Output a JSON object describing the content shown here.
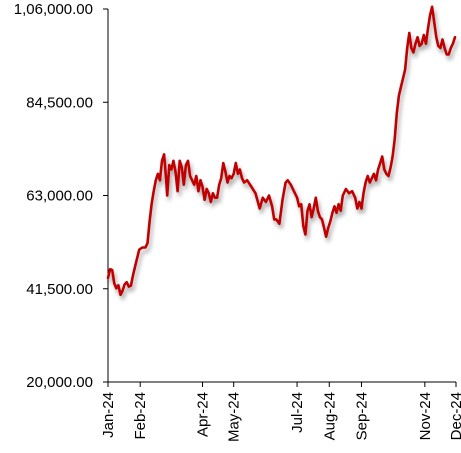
{
  "chart_data": {
    "type": "line",
    "title": "",
    "xlabel": "",
    "ylabel": "",
    "ylim": [
      20000,
      106000
    ],
    "y_ticks": [
      "20,000.00",
      "41,500.00",
      "63,000.00",
      "84,500.00",
      "1,06,000.00"
    ],
    "y_tick_values": [
      20000,
      41500,
      63000,
      84500,
      106000
    ],
    "x_ticks": [
      "Jan-24",
      "Feb-24",
      "Apr-24",
      "May-24",
      "Jul-24",
      "Aug-24",
      "Sep-24",
      "Nov-24",
      "Dec-24"
    ],
    "x_tick_dates": [
      "2024-01-01",
      "2024-02-01",
      "2024-04-01",
      "2024-05-01",
      "2024-07-01",
      "2024-08-01",
      "2024-09-01",
      "2024-11-01",
      "2024-12-01"
    ],
    "grid": false,
    "legend": "none",
    "series": [
      {
        "color": "#c00000",
        "points": [
          [
            "2024-01-01",
            44000
          ],
          [
            "2024-01-03",
            46000
          ],
          [
            "2024-01-05",
            45800
          ],
          [
            "2024-01-07",
            42800
          ],
          [
            "2024-01-09",
            41600
          ],
          [
            "2024-01-11",
            42300
          ],
          [
            "2024-01-13",
            40100
          ],
          [
            "2024-01-15",
            41000
          ],
          [
            "2024-01-17",
            42500
          ],
          [
            "2024-01-19",
            43000
          ],
          [
            "2024-01-21",
            42000
          ],
          [
            "2024-01-23",
            42200
          ],
          [
            "2024-01-25",
            44500
          ],
          [
            "2024-01-28",
            47500
          ],
          [
            "2024-01-31",
            50500
          ],
          [
            "2024-02-03",
            51000
          ],
          [
            "2024-02-06",
            51000
          ],
          [
            "2024-02-08",
            52000
          ],
          [
            "2024-02-10",
            57000
          ],
          [
            "2024-02-12",
            61000
          ],
          [
            "2024-02-14",
            64000
          ],
          [
            "2024-02-16",
            66500
          ],
          [
            "2024-02-18",
            68000
          ],
          [
            "2024-02-20",
            66500
          ],
          [
            "2024-02-22",
            71000
          ],
          [
            "2024-02-24",
            72500
          ],
          [
            "2024-02-26",
            66500
          ],
          [
            "2024-02-27",
            63000
          ],
          [
            "2024-02-29",
            70000
          ],
          [
            "2024-03-02",
            69000
          ],
          [
            "2024-03-04",
            71000
          ],
          [
            "2024-03-06",
            68500
          ],
          [
            "2024-03-08",
            64000
          ],
          [
            "2024-03-10",
            71000
          ],
          [
            "2024-03-12",
            69500
          ],
          [
            "2024-03-14",
            65500
          ],
          [
            "2024-03-16",
            70000
          ],
          [
            "2024-03-18",
            71000
          ],
          [
            "2024-03-20",
            67500
          ],
          [
            "2024-03-22",
            66500
          ],
          [
            "2024-03-24",
            65500
          ],
          [
            "2024-03-26",
            67500
          ],
          [
            "2024-03-28",
            64000
          ],
          [
            "2024-03-30",
            66500
          ],
          [
            "2024-04-01",
            65000
          ],
          [
            "2024-04-03",
            62000
          ],
          [
            "2024-04-05",
            64500
          ],
          [
            "2024-04-07",
            63500
          ],
          [
            "2024-04-09",
            61500
          ],
          [
            "2024-04-11",
            63500
          ],
          [
            "2024-04-13",
            62500
          ],
          [
            "2024-04-15",
            62500
          ],
          [
            "2024-04-17",
            65500
          ],
          [
            "2024-04-19",
            67000
          ],
          [
            "2024-04-21",
            70500
          ],
          [
            "2024-04-23",
            68500
          ],
          [
            "2024-04-25",
            66000
          ],
          [
            "2024-04-27",
            67500
          ],
          [
            "2024-04-29",
            67000
          ],
          [
            "2024-05-01",
            68000
          ],
          [
            "2024-05-03",
            70500
          ],
          [
            "2024-05-05",
            68000
          ],
          [
            "2024-05-07",
            69000
          ],
          [
            "2024-05-09",
            67000
          ],
          [
            "2024-05-11",
            66000
          ],
          [
            "2024-05-14",
            66500
          ],
          [
            "2024-05-18",
            65000
          ],
          [
            "2024-05-22",
            63500
          ],
          [
            "2024-05-26",
            60000
          ],
          [
            "2024-05-29",
            62500
          ],
          [
            "2024-06-01",
            61500
          ],
          [
            "2024-06-04",
            63000
          ],
          [
            "2024-06-07",
            60500
          ],
          [
            "2024-06-09",
            57500
          ],
          [
            "2024-06-11",
            57500
          ],
          [
            "2024-06-14",
            56500
          ],
          [
            "2024-06-17",
            62000
          ],
          [
            "2024-06-20",
            66000
          ],
          [
            "2024-06-22",
            66500
          ],
          [
            "2024-06-25",
            65500
          ],
          [
            "2024-06-28",
            64000
          ],
          [
            "2024-07-01",
            62500
          ],
          [
            "2024-07-03",
            60500
          ],
          [
            "2024-07-05",
            61000
          ],
          [
            "2024-07-07",
            56000
          ],
          [
            "2024-07-09",
            54000
          ],
          [
            "2024-07-11",
            59500
          ],
          [
            "2024-07-13",
            61000
          ],
          [
            "2024-07-15",
            58000
          ],
          [
            "2024-07-17",
            60000
          ],
          [
            "2024-07-19",
            62500
          ],
          [
            "2024-07-21",
            59500
          ],
          [
            "2024-07-23",
            58000
          ],
          [
            "2024-07-25",
            57500
          ],
          [
            "2024-07-27",
            55500
          ],
          [
            "2024-07-29",
            53500
          ],
          [
            "2024-07-31",
            55500
          ],
          [
            "2024-08-02",
            57000
          ],
          [
            "2024-08-04",
            59000
          ],
          [
            "2024-08-06",
            60500
          ],
          [
            "2024-08-08",
            59000
          ],
          [
            "2024-08-10",
            61000
          ],
          [
            "2024-08-12",
            59500
          ],
          [
            "2024-08-14",
            63000
          ],
          [
            "2024-08-17",
            64500
          ],
          [
            "2024-08-20",
            63500
          ],
          [
            "2024-08-23",
            64000
          ],
          [
            "2024-08-26",
            62500
          ],
          [
            "2024-08-28",
            60000
          ],
          [
            "2024-08-30",
            61500
          ],
          [
            "2024-09-01",
            60000
          ],
          [
            "2024-09-03",
            63500
          ],
          [
            "2024-09-05",
            66000
          ],
          [
            "2024-09-07",
            67500
          ],
          [
            "2024-09-09",
            66000
          ],
          [
            "2024-09-11",
            67000
          ],
          [
            "2024-09-13",
            68000
          ],
          [
            "2024-09-15",
            66500
          ],
          [
            "2024-09-17",
            69000
          ],
          [
            "2024-09-19",
            70500
          ],
          [
            "2024-09-21",
            72000
          ],
          [
            "2024-09-23",
            69000
          ],
          [
            "2024-09-25",
            68000
          ],
          [
            "2024-09-27",
            67500
          ],
          [
            "2024-09-29",
            69500
          ],
          [
            "2024-10-01",
            72000
          ],
          [
            "2024-10-03",
            76000
          ],
          [
            "2024-10-05",
            82000
          ],
          [
            "2024-10-07",
            86000
          ],
          [
            "2024-10-09",
            88000
          ],
          [
            "2024-10-11",
            90000
          ],
          [
            "2024-10-13",
            92000
          ],
          [
            "2024-10-15",
            97000
          ],
          [
            "2024-10-17",
            100500
          ],
          [
            "2024-10-19",
            97000
          ],
          [
            "2024-10-21",
            96000
          ],
          [
            "2024-10-23",
            98000
          ],
          [
            "2024-10-25",
            99500
          ],
          [
            "2024-10-27",
            97500
          ],
          [
            "2024-10-29",
            98000
          ],
          [
            "2024-10-31",
            100000
          ],
          [
            "2024-11-02",
            98000
          ],
          [
            "2024-11-04",
            101500
          ],
          [
            "2024-11-06",
            104500
          ],
          [
            "2024-11-08",
            106500
          ],
          [
            "2024-11-10",
            103000
          ],
          [
            "2024-11-12",
            99500
          ],
          [
            "2024-11-14",
            97500
          ],
          [
            "2024-11-16",
            97000
          ],
          [
            "2024-11-18",
            99000
          ],
          [
            "2024-11-20",
            97000
          ],
          [
            "2024-11-22",
            95500
          ],
          [
            "2024-11-24",
            95500
          ],
          [
            "2024-11-26",
            97000
          ],
          [
            "2024-11-28",
            98000
          ],
          [
            "2024-11-30",
            99500
          ]
        ]
      }
    ]
  }
}
